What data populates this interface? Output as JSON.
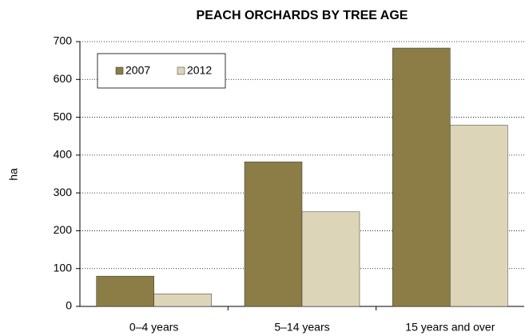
{
  "chart_data": {
    "type": "bar",
    "title": "PEACH ORCHARDS BY TREE AGE",
    "y_label": "ha",
    "categories": [
      "0–4 years",
      "5–14 years",
      "15 years and over"
    ],
    "series": [
      {
        "name": "2007",
        "color": "#8b7d45",
        "values": [
          80,
          382,
          683
        ]
      },
      {
        "name": "2012",
        "color": "#ddd5b8",
        "values": [
          33,
          250,
          479
        ]
      }
    ],
    "ylim": [
      0,
      700
    ],
    "yticks": [
      0,
      100,
      200,
      300,
      400,
      500,
      600,
      700
    ],
    "grid": true,
    "legend": "upper left"
  }
}
